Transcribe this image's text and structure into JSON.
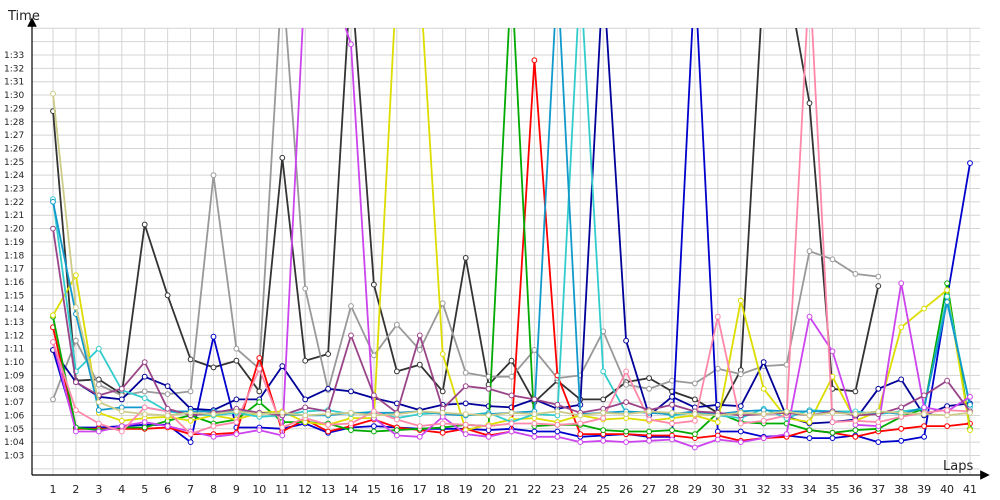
{
  "chart_data": {
    "type": "line",
    "xlabel": "Laps",
    "ylabel": "Time",
    "x": [
      1,
      2,
      3,
      4,
      5,
      6,
      7,
      8,
      9,
      10,
      11,
      12,
      13,
      14,
      15,
      16,
      17,
      18,
      19,
      20,
      21,
      22,
      23,
      24,
      25,
      26,
      27,
      28,
      29,
      30,
      31,
      32,
      33,
      34,
      35,
      36,
      37,
      38,
      39,
      40,
      41
    ],
    "y_ticks": [
      "1:03",
      "1:04",
      "1:05",
      "1:06",
      "1:07",
      "1:08",
      "1:09",
      "1:10",
      "1:11",
      "1:12",
      "1:13",
      "1:14",
      "1:15",
      "1:16",
      "1:17",
      "1:18",
      "1:19",
      "1:20",
      "1:21",
      "1:22",
      "1:23",
      "1:24",
      "1:25",
      "1:26",
      "1:27",
      "1:28",
      "1:29",
      "1:30",
      "1:31",
      "1:32",
      "1:33"
    ],
    "ylim_seconds": [
      62,
      96
    ],
    "grid": true,
    "legend": "none",
    "series": [
      {
        "color": "#333333",
        "values": [
          88.8,
          68.6,
          68.7,
          67.6,
          80.3,
          75.0,
          70.2,
          69.6,
          70.1,
          67.8,
          85.3,
          70.1,
          70.6,
          99,
          75.8,
          69.3,
          69.8,
          67.8,
          77.8,
          68.3,
          70.1,
          67.0,
          68.6,
          67.2,
          67.2,
          68.5,
          68.8,
          67.8,
          67.2,
          66.2,
          69.4,
          99,
          99,
          89.4,
          68.0,
          67.8,
          75.7,
          null,
          null,
          null,
          null
        ]
      },
      {
        "color": "#999999",
        "values": [
          67.2,
          71.6,
          68.3,
          67.5,
          67.8,
          67.6,
          67.8,
          84.0,
          71.0,
          69.5,
          99,
          75.5,
          67.9,
          74.2,
          70.5,
          72.8,
          70.9,
          74.4,
          69.2,
          68.9,
          68.9,
          70.9,
          68.8,
          69.0,
          72.3,
          68.3,
          68.0,
          68.6,
          68.4,
          69.5,
          69.1,
          69.7,
          69.8,
          78.3,
          77.7,
          76.6,
          76.4,
          null,
          null,
          null,
          null
        ]
      },
      {
        "color": "#0000cc",
        "values": [
          70.9,
          65.1,
          65.1,
          65.2,
          65.3,
          65.3,
          64.0,
          71.9,
          65.1,
          65.1,
          65.0,
          65.4,
          64.7,
          65.1,
          65.2,
          65.1,
          65.0,
          65.0,
          65.0,
          64.9,
          65.0,
          64.8,
          64.8,
          64.4,
          64.5,
          64.6,
          64.4,
          64.4,
          99,
          64.8,
          64.8,
          64.4,
          64.5,
          64.3,
          64.3,
          64.5,
          64.0,
          64.1,
          64.4,
          74.8,
          84.9
        ]
      },
      {
        "color": "#000099",
        "values": [
          70.9,
          68.5,
          67.4,
          67.2,
          68.9,
          68.2,
          66.5,
          66.4,
          67.2,
          67.2,
          69.7,
          67.2,
          68.0,
          67.8,
          67.3,
          66.9,
          66.4,
          66.8,
          66.9,
          66.7,
          66.6,
          67.2,
          66.5,
          66.8,
          99,
          71.6,
          66.0,
          67.4,
          66.6,
          66.8,
          66.7,
          70.0,
          65.9,
          65.4,
          65.5,
          65.7,
          68.0,
          68.7,
          66.0,
          66.7,
          66.9
        ]
      },
      {
        "color": "#000000",
        "values": [
          null,
          null,
          null,
          null,
          null,
          null,
          null,
          null,
          null,
          null,
          null,
          null,
          null,
          null,
          null,
          null,
          null,
          null,
          null,
          null,
          null,
          null,
          null,
          null,
          null,
          null,
          null,
          null,
          null,
          null,
          null,
          null,
          null,
          null,
          null,
          null,
          null,
          null,
          null,
          null,
          null
        ]
      },
      {
        "color": "#ff0000",
        "values": [
          72.6,
          65.0,
          65.0,
          65.0,
          65.0,
          65.1,
          64.6,
          64.6,
          64.7,
          70.3,
          64.8,
          65.7,
          64.8,
          65.2,
          65.7,
          65.1,
          64.9,
          64.7,
          65.0,
          64.5,
          64.8,
          92.6,
          69.0,
          64.6,
          64.6,
          64.6,
          64.5,
          64.5,
          64.3,
          64.5,
          64.1,
          64.3,
          64.4,
          64.9,
          64.7,
          64.4,
          64.8,
          65.0,
          65.2,
          65.2,
          65.4
        ]
      },
      {
        "color": "#00aa00",
        "values": [
          73.4,
          65.1,
          64.9,
          65.1,
          65.1,
          65.6,
          66.0,
          65.4,
          65.7,
          67.0,
          65.5,
          65.5,
          65.4,
          64.9,
          64.8,
          64.9,
          65.0,
          65.1,
          65.3,
          65.2,
          99,
          65.2,
          65.3,
          65.3,
          64.9,
          64.8,
          64.8,
          64.9,
          64.6,
          66.2,
          65.5,
          65.4,
          65.4,
          64.9,
          64.7,
          64.9,
          65.0,
          65.9,
          66.5,
          75.9,
          65.0
        ]
      },
      {
        "color": "#dddd00",
        "values": [
          73.5,
          76.5,
          66.2,
          65.6,
          65.8,
          65.9,
          65.6,
          66.0,
          65.7,
          66.2,
          66.3,
          65.5,
          65.3,
          65.8,
          65.8,
          99,
          99,
          70.6,
          64.9,
          65.3,
          65.7,
          65.8,
          65.5,
          66.0,
          65.7,
          65.8,
          65.6,
          65.8,
          66.0,
          65.5,
          74.6,
          68.0,
          65.8,
          65.5,
          68.9,
          65.6,
          66.3,
          72.6,
          74.0,
          75.4,
          64.9
        ]
      },
      {
        "color": "#33cccc",
        "values": [
          82.2,
          69.3,
          71.0,
          67.9,
          67.3,
          66.3,
          66.1,
          66.0,
          66.2,
          65.9,
          66.0,
          66.3,
          66.4,
          66.1,
          66.3,
          65.8,
          66.1,
          66.2,
          66.0,
          66.2,
          65.5,
          66.1,
          66.0,
          99,
          69.3,
          66.2,
          66.3,
          66.0,
          66.2,
          66.0,
          65.8,
          66.5,
          65.8,
          66.4,
          66.3,
          66.3,
          66.1,
          66.3,
          66.5,
          74.9,
          66.6
        ]
      },
      {
        "color": "#1199cc",
        "values": [
          82.0,
          73.6,
          66.4,
          66.6,
          66.6,
          66.3,
          66.3,
          66.3,
          66.3,
          66.2,
          66.1,
          66.0,
          66.0,
          66.2,
          66.2,
          66.2,
          66.3,
          66.1,
          66.0,
          66.1,
          66.2,
          66.3,
          99,
          66.1,
          66.2,
          66.3,
          66.2,
          66.1,
          66.3,
          66.1,
          66.3,
          66.4,
          66.3,
          66.3,
          66.3,
          66.1,
          66.3,
          66.1,
          66.6,
          74.5,
          66.8
        ]
      },
      {
        "color": "#cc44ee",
        "values": [
          71.5,
          64.8,
          64.8,
          65.2,
          65.5,
          65.2,
          64.8,
          64.4,
          64.6,
          64.9,
          64.5,
          99,
          99,
          93.8,
          65.8,
          64.5,
          64.4,
          65.9,
          64.6,
          64.4,
          64.8,
          64.4,
          64.4,
          64.0,
          64.1,
          64.0,
          64.1,
          64.2,
          63.6,
          64.2,
          64.0,
          64.3,
          64.6,
          73.4,
          70.8,
          65.3,
          65.2,
          75.9,
          66.6,
          66.3,
          67.4
        ]
      },
      {
        "color": "#ff88aa",
        "values": [
          71.5,
          66.4,
          65.4,
          64.8,
          66.6,
          66.3,
          64.6,
          65.2,
          65.5,
          69.5,
          65.1,
          65.8,
          65.3,
          65.4,
          66.3,
          65.7,
          65.2,
          65.4,
          65.3,
          65.2,
          65.4,
          65.4,
          65.3,
          65.4,
          65.8,
          69.3,
          65.7,
          65.4,
          65.6,
          73.4,
          65.4,
          65.6,
          66.0,
          99,
          65.5,
          65.6,
          65.5,
          65.9,
          66.2,
          66.4,
          66.3
        ]
      },
      {
        "color": "#994488",
        "values": [
          80.0,
          68.5,
          67.5,
          68.0,
          70.0,
          66.5,
          66.0,
          66.2,
          66.5,
          66.2,
          66.0,
          66.6,
          66.3,
          72.0,
          67.5,
          66.2,
          72.0,
          66.5,
          68.2,
          68.0,
          67.5,
          67.2,
          66.8,
          66.2,
          66.5,
          67.0,
          66.4,
          66.8,
          66.3,
          66.2,
          66.0,
          66.1,
          66.2,
          66.0,
          66.3,
          66.0,
          66.1,
          66.6,
          67.5,
          68.6,
          66.3
        ]
      },
      {
        "color": "#cccc88",
        "values": [
          90.1,
          74.1,
          67.0,
          66.3,
          66.1,
          66.0,
          66.2,
          66.1,
          66.3,
          66.1,
          66.2,
          66.0,
          66.1,
          66.2,
          66.0,
          66.1,
          66.3,
          66.2,
          66.1,
          66.0,
          66.2,
          66.1,
          66.3,
          66.0,
          66.2,
          66.1,
          66.3,
          66.2,
          66.1,
          66.0,
          66.2,
          66.1,
          66.3,
          66.0,
          66.2,
          66.1,
          66.3,
          66.2,
          66.1,
          66.0,
          66.2
        ]
      }
    ]
  }
}
